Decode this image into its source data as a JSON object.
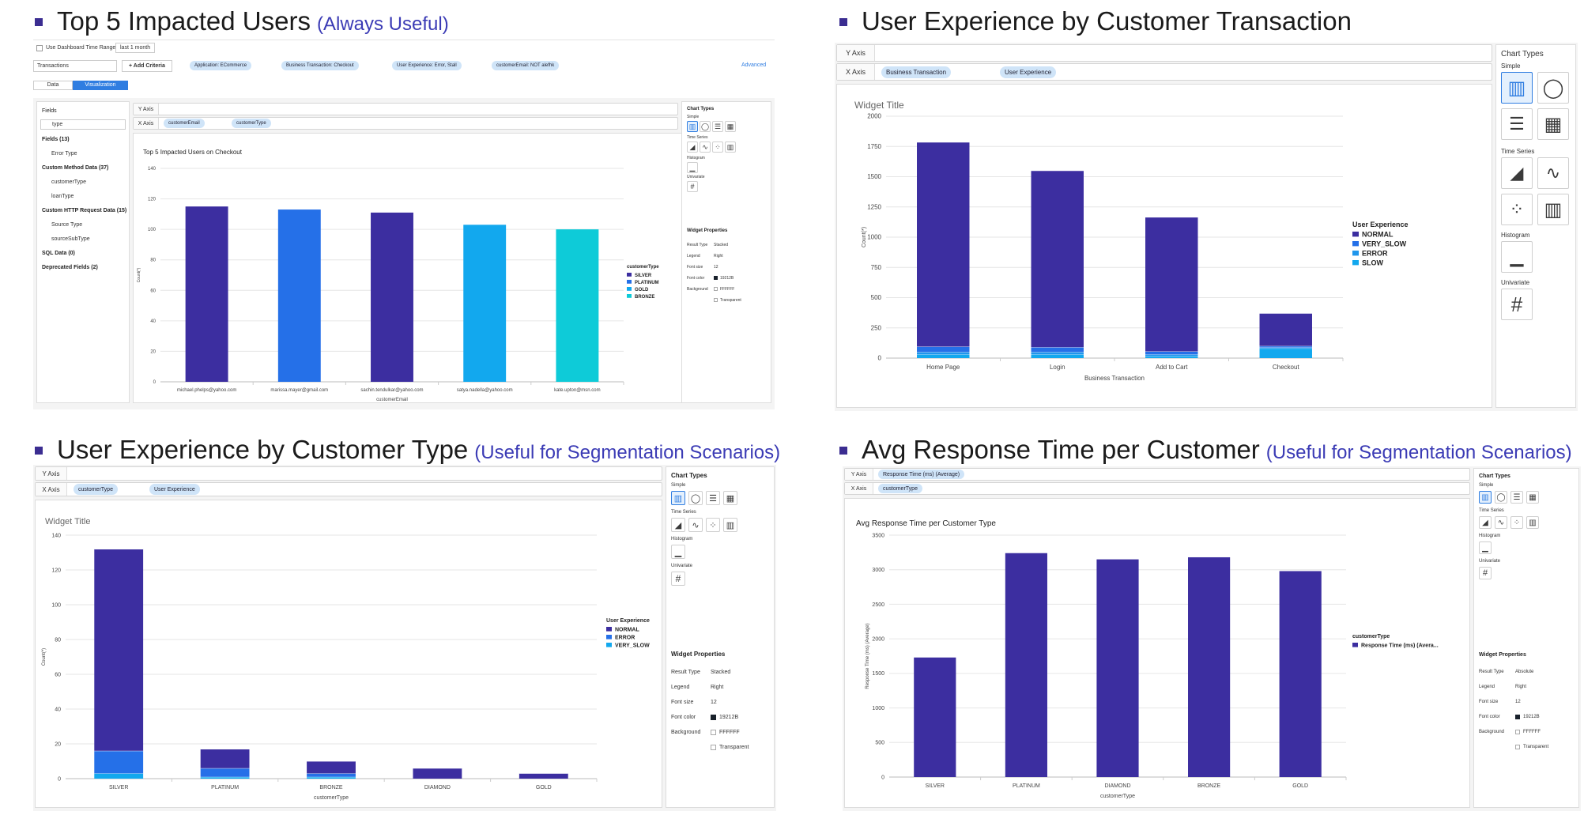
{
  "q1": {
    "title": "Top 5 Impacted Users",
    "subtitle": "(Always Useful)",
    "filters": {
      "use_dashboard": "Use Dashboard Time Range",
      "time_range": "last 1 month",
      "source": "Transactions",
      "add_criteria": "+ Add Criteria",
      "chips": [
        "Application: ECommerce",
        "Business Transaction: Checkout",
        "User Experience: Error, Stall",
        "customerEmail: NOT alefhk"
      ],
      "advanced": "Advanced"
    },
    "tabs": [
      "Data",
      "Visualization"
    ],
    "fields_panel": {
      "heading": "Fields",
      "search": "type",
      "items": [
        "Fields (13)",
        "Error Type",
        "Custom Method Data (37)",
        "customerType",
        "loanType",
        "Custom HTTP Request Data (15)",
        "Source Type",
        "sourceSubType",
        "SQL Data (0)",
        "Deprecated Fields (2)"
      ]
    },
    "y_axis_label": "Y Axis",
    "x_axis_label": "X Axis",
    "x_chips": [
      "customerEmail",
      "customerType"
    ],
    "chart_types": {
      "title": "Chart Types",
      "simple": "Simple",
      "time_series": "Time Series",
      "histogram": "Histogram",
      "univariate": "Univariate"
    },
    "props": {
      "title": "Widget Properties",
      "rows": [
        [
          "Result Type",
          "Stacked"
        ],
        [
          "Legend",
          "Right"
        ],
        [
          "Font size",
          "12"
        ],
        [
          "Font color",
          "19212B"
        ],
        [
          "Background",
          "FFFFFF"
        ]
      ],
      "transparent": "Transparent"
    }
  },
  "q2": {
    "title": "User Experience by Customer Transaction",
    "y_axis_label": "Y Axis",
    "x_axis_label": "X Axis",
    "x_chips": [
      "Business Transaction",
      "User Experience"
    ],
    "chart_types": {
      "title": "Chart Types",
      "simple": "Simple",
      "time_series": "Time Series",
      "histogram": "Histogram",
      "univariate": "Univariate"
    }
  },
  "q3": {
    "title": "User Experience by Customer Type",
    "subtitle": "(Useful for Segmentation Scenarios)",
    "y_axis_label": "Y Axis",
    "x_axis_label": "X Axis",
    "x_chips": [
      "customerType",
      "User Experience"
    ],
    "chart_types": {
      "title": "Chart Types",
      "simple": "Simple",
      "time_series": "Time Series",
      "histogram": "Histogram",
      "univariate": "Univariate"
    },
    "props": {
      "title": "Widget Properties",
      "rows": [
        [
          "Result Type",
          "Stacked"
        ],
        [
          "Legend",
          "Right"
        ],
        [
          "Font size",
          "12"
        ],
        [
          "Font color",
          "19212B"
        ],
        [
          "Background",
          "FFFFFF"
        ]
      ],
      "transparent": "Transparent"
    }
  },
  "q4": {
    "title": "Avg Response Time per Customer",
    "subtitle": "(Useful for Segmentation Scenarios)",
    "y_axis_label": "Y Axis",
    "x_axis_label": "X Axis",
    "y_chips": [
      "Response Time (ms) (Average)"
    ],
    "x_chips": [
      "customerType"
    ],
    "chart_types": {
      "title": "Chart Types",
      "simple": "Simple",
      "time_series": "Time Series",
      "histogram": "Histogram",
      "univariate": "Univariate"
    },
    "props": {
      "title": "Widget Properties",
      "rows": [
        [
          "Result Type",
          "Absolute"
        ],
        [
          "Legend",
          "Right"
        ],
        [
          "Font size",
          "12"
        ],
        [
          "Font color",
          "19212B"
        ],
        [
          "Background",
          "FFFFFF"
        ]
      ],
      "transparent": "Transparent"
    }
  },
  "chart_data": [
    {
      "type": "bar",
      "title": "Top 5 Impacted Users on Checkout",
      "xlabel": "customerEmail",
      "ylabel": "Count(*)",
      "ylim": [
        0,
        140
      ],
      "yticks": [
        0,
        20,
        40,
        60,
        80,
        100,
        120,
        140
      ],
      "categories": [
        "michael.phelps@yahoo.com",
        "marissa.mayer@gmail.com",
        "sachin.tendulkar@yahoo.com",
        "satya.nadella@yahoo.com",
        "kate.upton@msn.com"
      ],
      "values": [
        115,
        113,
        111,
        103,
        100
      ],
      "bar_colors": [
        "#3c2ea0",
        "#2570e8",
        "#3c2ea0",
        "#12a8ee",
        "#0ecbd8"
      ],
      "legend_title": "customerType",
      "legend": [
        {
          "name": "SILVER",
          "color": "#3c2ea0"
        },
        {
          "name": "PLATINUM",
          "color": "#2570e8"
        },
        {
          "name": "GOLD",
          "color": "#12a8ee"
        },
        {
          "name": "BRONZE",
          "color": "#0ecbd8"
        }
      ],
      "legend_position": "right",
      "grid": true
    },
    {
      "type": "bar",
      "stacked": true,
      "title": "Widget Title",
      "xlabel": "Business Transaction",
      "ylabel": "Count(*)",
      "ylim": [
        0,
        2000
      ],
      "yticks": [
        0,
        250,
        500,
        750,
        1000,
        1250,
        1500,
        1750,
        2000
      ],
      "categories": [
        "Home Page",
        "Login",
        "Add to Cart",
        "Checkout"
      ],
      "series": [
        {
          "name": "SLOW",
          "color": "#12a8ee",
          "values": [
            30,
            30,
            15,
            80
          ]
        },
        {
          "name": "ERROR",
          "color": "#1f96ec",
          "values": [
            20,
            20,
            15,
            8
          ]
        },
        {
          "name": "VERY_SLOW",
          "color": "#2570e8",
          "values": [
            45,
            40,
            25,
            12
          ]
        },
        {
          "name": "NORMAL",
          "color": "#3c2ea0",
          "values": [
            1690,
            1460,
            1110,
            270
          ]
        }
      ],
      "legend_title": "User Experience",
      "legend": [
        {
          "name": "NORMAL",
          "color": "#3c2ea0"
        },
        {
          "name": "VERY_SLOW",
          "color": "#2570e8"
        },
        {
          "name": "ERROR",
          "color": "#1f96ec"
        },
        {
          "name": "SLOW",
          "color": "#12a8ee"
        }
      ],
      "legend_position": "right",
      "grid": true
    },
    {
      "type": "bar",
      "stacked": true,
      "title": "Widget Title",
      "xlabel": "customerType",
      "ylabel": "Count(*)",
      "ylim": [
        0,
        140
      ],
      "yticks": [
        0,
        20,
        40,
        60,
        80,
        100,
        120,
        140
      ],
      "categories": [
        "SILVER",
        "PLATINUM",
        "BRONZE",
        "DIAMOND",
        "GOLD"
      ],
      "series": [
        {
          "name": "VERY_SLOW",
          "color": "#12a8ee",
          "values": [
            3,
            1,
            1,
            0,
            0
          ]
        },
        {
          "name": "ERROR",
          "color": "#2570e8",
          "values": [
            13,
            5,
            2,
            0,
            0
          ]
        },
        {
          "name": "NORMAL",
          "color": "#3c2ea0",
          "values": [
            116,
            11,
            7,
            6,
            3
          ]
        }
      ],
      "legend_title": "User Experience",
      "legend": [
        {
          "name": "NORMAL",
          "color": "#3c2ea0"
        },
        {
          "name": "ERROR",
          "color": "#2570e8"
        },
        {
          "name": "VERY_SLOW",
          "color": "#12a8ee"
        }
      ],
      "legend_position": "right",
      "grid": true
    },
    {
      "type": "bar",
      "title": "Avg Response Time per Customer Type",
      "xlabel": "customerType",
      "ylabel": "Response Time (ms) (Average)",
      "ylim": [
        0,
        3500
      ],
      "yticks": [
        0,
        500,
        1000,
        1500,
        2000,
        2500,
        3000,
        3500
      ],
      "categories": [
        "SILVER",
        "PLATINUM",
        "DIAMOND",
        "BRONZE",
        "GOLD"
      ],
      "values": [
        1730,
        3240,
        3150,
        3180,
        2980
      ],
      "bar_colors": [
        "#3c2ea0",
        "#3c2ea0",
        "#3c2ea0",
        "#3c2ea0",
        "#3c2ea0"
      ],
      "legend_title": "customerType",
      "legend": [
        {
          "name": "Response Time (ms) (Avera...",
          "color": "#3c2ea0"
        }
      ],
      "legend_position": "right",
      "grid": true
    }
  ]
}
